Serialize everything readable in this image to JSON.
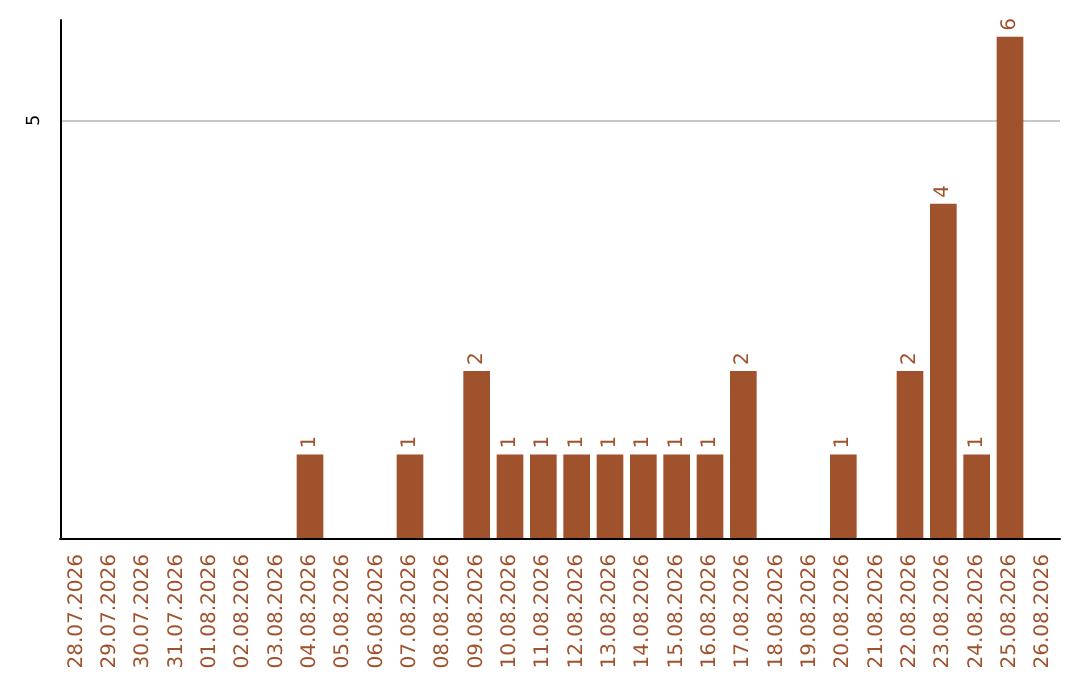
{
  "chart_data": {
    "type": "bar",
    "categories": [
      "28.07.2026",
      "29.07.2026",
      "30.07.2026",
      "31.07.2026",
      "01.08.2026",
      "02.08.2026",
      "03.08.2026",
      "04.08.2026",
      "05.08.2026",
      "06.08.2026",
      "07.08.2026",
      "08.08.2026",
      "09.08.2026",
      "10.08.2026",
      "11.08.2026",
      "12.08.2026",
      "13.08.2026",
      "14.08.2026",
      "15.08.2026",
      "16.08.2026",
      "17.08.2026",
      "18.08.2026",
      "19.08.2026",
      "20.08.2026",
      "21.08.2026",
      "22.08.2026",
      "23.08.2026",
      "24.08.2026",
      "25.08.2026",
      "26.08.2026"
    ],
    "values": [
      0,
      0,
      0,
      0,
      0,
      0,
      0,
      1,
      0,
      0,
      1,
      0,
      2,
      1,
      1,
      1,
      1,
      1,
      1,
      1,
      2,
      0,
      0,
      1,
      0,
      2,
      4,
      1,
      6,
      0
    ],
    "value_labels": [
      null,
      null,
      null,
      null,
      null,
      null,
      null,
      "1",
      null,
      null,
      "1",
      null,
      "2",
      "1",
      "1",
      "1",
      "1",
      "1",
      "1",
      "1",
      "2",
      null,
      null,
      "1",
      null,
      "2",
      "4",
      "1",
      "6",
      null
    ],
    "color": "#a0522d",
    "ylim": [
      0,
      6.2
    ],
    "yticks": [
      5
    ],
    "grid": "y"
  }
}
